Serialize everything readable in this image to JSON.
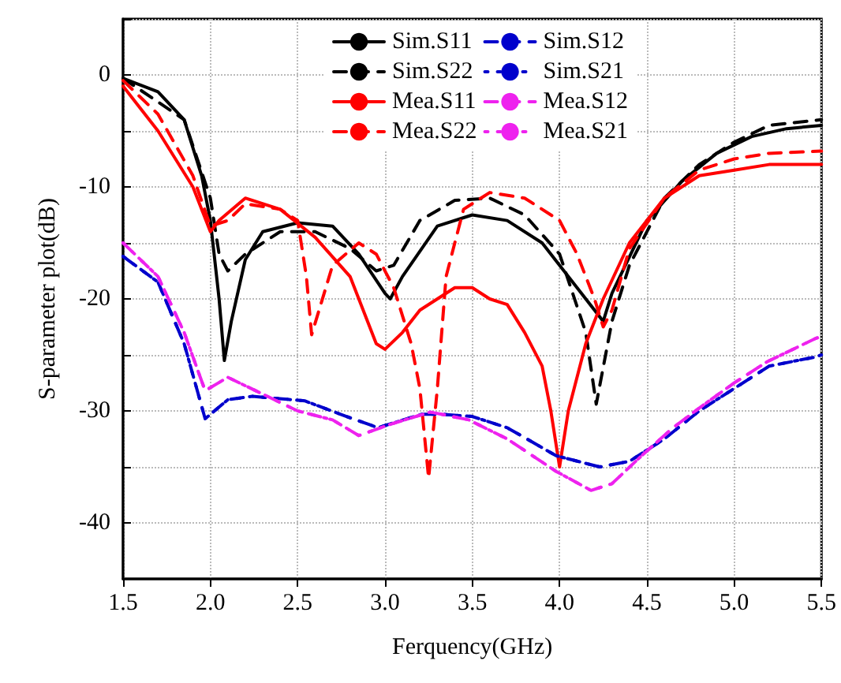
{
  "chart_data": {
    "type": "line",
    "xlabel": "Ferquency(GHz)",
    "ylabel": "S-parameter plot(dB)",
    "xlim": [
      1.5,
      5.5
    ],
    "ylim": [
      -45,
      5
    ],
    "xticks": [
      1.5,
      {
        "value": 2,
        "label": "2.0"
      },
      2.5,
      {
        "value": 3,
        "label": "3.0"
      },
      3.5,
      {
        "value": 4,
        "label": "4.0"
      },
      4.5,
      {
        "value": 5,
        "label": "5.0"
      },
      5.5
    ],
    "yticks": [
      -40,
      {
        "value": -35,
        "label": null
      },
      -30,
      {
        "value": -25,
        "label": null
      },
      -20,
      {
        "value": -15,
        "label": null
      },
      -10,
      {
        "value": -5,
        "label": null
      },
      0,
      {
        "value": 5,
        "label": null
      }
    ],
    "grid": true,
    "legend": "top right",
    "marker": "none",
    "series": [
      {
        "name": "Sim.S11",
        "color": "#000000",
        "line_style": "solid",
        "x": [
          1.5,
          1.7,
          1.85,
          1.95,
          2.0,
          2.05,
          2.08,
          2.12,
          2.2,
          2.3,
          2.5,
          2.7,
          2.85,
          3.0,
          3.03,
          3.1,
          3.3,
          3.5,
          3.7,
          3.9,
          4.1,
          4.25,
          4.3,
          4.5,
          4.7,
          4.9,
          5.1,
          5.3,
          5.5
        ],
        "values": [
          -0.3,
          -1.5,
          -4,
          -9,
          -13,
          -20,
          -25.5,
          -22,
          -16.5,
          -14,
          -13.2,
          -13.5,
          -16,
          -19.5,
          -20,
          -18,
          -13.5,
          -12.5,
          -13,
          -15,
          -19,
          -22,
          -19.5,
          -13,
          -9.5,
          -7,
          -5.5,
          -4.8,
          -4.5
        ]
      },
      {
        "name": "Sim.S22",
        "color": "#000000",
        "line_style": "dashed",
        "x": [
          1.5,
          1.85,
          2.0,
          2.05,
          2.1,
          2.2,
          2.4,
          2.6,
          2.8,
          2.95,
          3.05,
          3.2,
          3.4,
          3.6,
          3.8,
          4.0,
          4.15,
          4.21,
          4.3,
          4.4,
          4.6,
          4.8,
          5.0,
          5.2,
          5.5
        ],
        "values": [
          -0.3,
          -4,
          -11,
          -16,
          -17.5,
          -16,
          -14,
          -14,
          -15.5,
          -17.5,
          -17,
          -13,
          -11.2,
          -11,
          -12.5,
          -16,
          -23,
          -29.4,
          -22,
          -17,
          -11,
          -8,
          -6,
          -4.5,
          -4
        ]
      },
      {
        "name": "Mea.S11",
        "color": "#ff0000",
        "line_style": "solid",
        "x": [
          1.5,
          1.7,
          1.9,
          2.0,
          2.05,
          2.2,
          2.4,
          2.6,
          2.8,
          2.95,
          3.0,
          3.1,
          3.2,
          3.4,
          3.5,
          3.6,
          3.7,
          3.8,
          3.9,
          3.95,
          4.0,
          4.05,
          4.15,
          4.25,
          4.4,
          4.6,
          4.8,
          5.0,
          5.2,
          5.5
        ],
        "values": [
          -1,
          -5,
          -10,
          -14,
          -13,
          -11,
          -12,
          -14.5,
          -18,
          -24,
          -24.5,
          -23,
          -21,
          -19,
          -19,
          -20,
          -20.5,
          -23,
          -26,
          -30,
          -35,
          -30,
          -24,
          -20,
          -15,
          -11,
          -9,
          -8.5,
          -8,
          -8
        ]
      },
      {
        "name": "Mea.S22",
        "color": "#ff0000",
        "line_style": "dashed",
        "x": [
          1.5,
          1.7,
          1.9,
          2.0,
          2.1,
          2.2,
          2.4,
          2.5,
          2.55,
          2.58,
          2.7,
          2.85,
          2.95,
          3.05,
          3.15,
          3.2,
          3.25,
          3.3,
          3.35,
          3.45,
          3.6,
          3.8,
          4.0,
          4.1,
          4.2,
          4.25,
          4.3,
          4.4,
          4.6,
          4.8,
          5.0,
          5.2,
          5.5
        ],
        "values": [
          -0.5,
          -3.5,
          -9,
          -13.5,
          -13,
          -11.5,
          -12,
          -13,
          -18,
          -23.2,
          -17,
          -15,
          -16,
          -19,
          -24,
          -28,
          -36,
          -28,
          -18,
          -12,
          -10.5,
          -11,
          -13,
          -16,
          -20,
          -22.5,
          -21,
          -15.5,
          -11,
          -8.5,
          -7.5,
          -7,
          -6.8
        ]
      },
      {
        "name": "Sim.S12",
        "color": "#0000cc",
        "line_style": "dashed",
        "x": [
          1.5,
          1.7,
          1.85,
          1.97,
          2.1,
          2.24,
          2.54,
          2.78,
          2.96,
          3.21,
          3.32,
          3.5,
          3.7,
          3.98,
          4.23,
          4.4,
          4.6,
          4.8,
          5.0,
          5.2,
          5.46,
          5.5
        ],
        "values": [
          -16.2,
          -18.5,
          -24,
          -30.7,
          -29,
          -28.7,
          -29.1,
          -30.5,
          -31.5,
          -30.3,
          -30.3,
          -30.5,
          -31.5,
          -34,
          -35,
          -34.5,
          -32.5,
          -30,
          -28,
          -26,
          -25.2,
          -25
        ]
      },
      {
        "name": "Sim.S21",
        "color": "#0000cc",
        "line_style": "dotted",
        "x": [
          1.5,
          1.7,
          1.85,
          1.97,
          2.1,
          2.24,
          2.54,
          2.78,
          2.96,
          3.21,
          3.32,
          3.5,
          3.7,
          3.98,
          4.23,
          4.4,
          4.6,
          4.8,
          5.0,
          5.2,
          5.46,
          5.5
        ],
        "values": [
          -16.2,
          -18.5,
          -24,
          -30.7,
          -29,
          -28.7,
          -29.1,
          -30.5,
          -31.5,
          -30.3,
          -30.3,
          -30.5,
          -31.5,
          -34,
          -35,
          -34.5,
          -32.5,
          -30,
          -28,
          -26,
          -25.2,
          -25
        ]
      },
      {
        "name": "Mea.S12",
        "color": "#ee22ee",
        "line_style": "dashed",
        "x": [
          1.5,
          1.7,
          1.85,
          1.97,
          2.1,
          2.3,
          2.5,
          2.7,
          2.85,
          3.03,
          3.26,
          3.48,
          3.7,
          3.98,
          4.18,
          4.3,
          4.47,
          4.65,
          4.83,
          5.0,
          5.19,
          5.47,
          5.5
        ],
        "values": [
          -15,
          -18,
          -23,
          -28.2,
          -27,
          -28.5,
          -30,
          -30.8,
          -32.2,
          -31.2,
          -30.1,
          -30.8,
          -32.5,
          -35.4,
          -37.1,
          -36.5,
          -34,
          -31.5,
          -29.4,
          -27.5,
          -25.6,
          -23.5,
          -23.4
        ]
      },
      {
        "name": "Mea.S21",
        "color": "#ee22ee",
        "line_style": "dotted",
        "x": [
          1.5,
          1.7,
          1.85,
          1.97,
          2.1,
          2.3,
          2.5,
          2.7,
          2.85,
          3.03,
          3.26,
          3.48,
          3.7,
          3.98,
          4.18,
          4.3,
          4.47,
          4.65,
          4.83,
          5.0,
          5.19,
          5.47,
          5.5
        ],
        "values": [
          -15,
          -18,
          -23,
          -28.2,
          -27,
          -28.5,
          -30,
          -30.8,
          -32.2,
          -31.2,
          -30.1,
          -30.8,
          -32.5,
          -35.4,
          -37.1,
          -36.5,
          -34,
          -31.5,
          -29.4,
          -27.5,
          -25.6,
          -23.5,
          -23.4
        ]
      }
    ]
  }
}
